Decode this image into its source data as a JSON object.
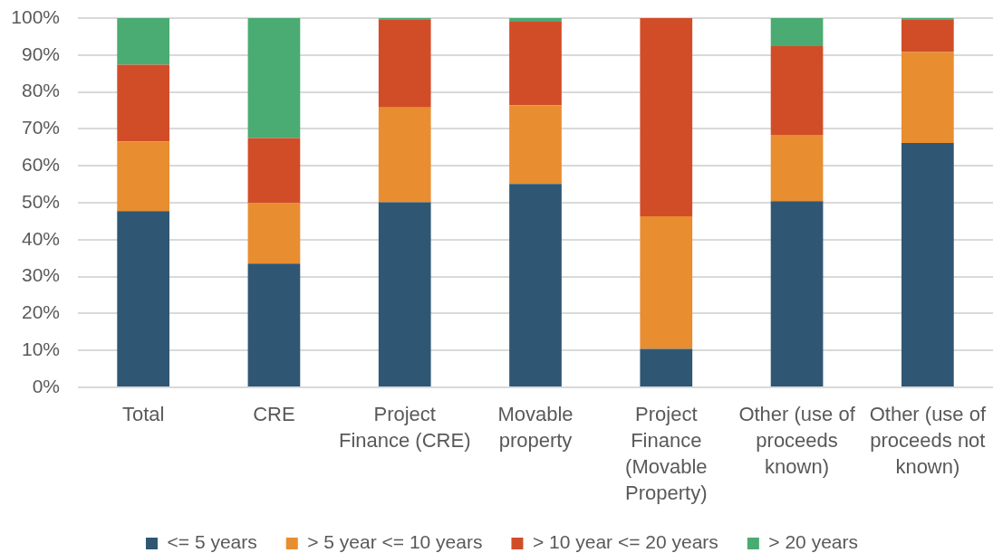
{
  "chart_data": {
    "type": "bar",
    "stacked": true,
    "categories": [
      "Total",
      "CRE",
      "Project Finance (CRE)",
      "Movable property",
      "Project Finance (Movable Property)",
      "Other (use of proceeds known)",
      "Other (use of proceeds not known)"
    ],
    "series": [
      {
        "name": "<= 5 years",
        "color": "#2f5773",
        "values": [
          47.7,
          33.5,
          50.1,
          55.1,
          10.4,
          50.4,
          66.2
        ]
      },
      {
        "name": "> 5 year <= 10 years",
        "color": "#e88d30",
        "values": [
          18.9,
          16.4,
          25.7,
          21.3,
          35.9,
          18.0,
          24.6
        ]
      },
      {
        "name": "> 10 year <= 20 years",
        "color": "#d14d28",
        "values": [
          20.8,
          17.6,
          23.9,
          22.6,
          53.7,
          24.0,
          8.9
        ]
      },
      {
        "name": "> 20 years",
        "color": "#4aab73",
        "values": [
          12.6,
          32.5,
          0.3,
          1.0,
          0,
          7.6,
          0.3
        ]
      }
    ],
    "ylim": [
      0,
      100
    ],
    "yticks": [
      {
        "value": 0,
        "label": "0%"
      },
      {
        "value": 10,
        "label": "10%"
      },
      {
        "value": 20,
        "label": "20%"
      },
      {
        "value": 30,
        "label": "30%"
      },
      {
        "value": 40,
        "label": "40%"
      },
      {
        "value": 50,
        "label": "50%"
      },
      {
        "value": 60,
        "label": "60%"
      },
      {
        "value": 70,
        "label": "70%"
      },
      {
        "value": 80,
        "label": "80%"
      },
      {
        "value": 90,
        "label": "90%"
      },
      {
        "value": 100,
        "label": "100%"
      }
    ],
    "grid": "y",
    "legend": "bottom"
  }
}
